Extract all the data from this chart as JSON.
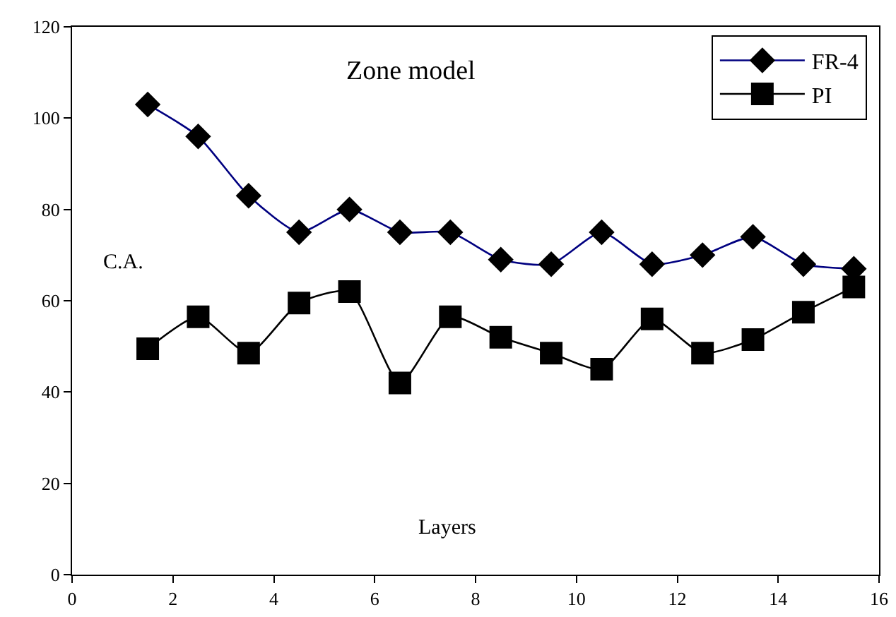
{
  "chart_data": {
    "type": "line",
    "title": "Zone model",
    "xlabel": "Layers",
    "ylabel": "C.A.",
    "x": [
      1.5,
      2.5,
      3.5,
      4.5,
      5.5,
      6.5,
      7.5,
      8.5,
      9.5,
      10.5,
      11.5,
      12.5,
      13.5,
      14.5,
      15.5
    ],
    "series": [
      {
        "name": "FR-4",
        "color": "#000080",
        "marker": "diamond",
        "values": [
          103,
          96,
          83,
          75,
          80,
          75,
          75,
          69,
          68,
          75,
          68,
          70,
          74,
          68,
          67
        ]
      },
      {
        "name": "PI",
        "color": "#000000",
        "marker": "square",
        "values": [
          49.5,
          56.5,
          48.5,
          59.5,
          62,
          42,
          56.5,
          52,
          48.5,
          45,
          56,
          48.5,
          51.5,
          57.5,
          63
        ]
      }
    ],
    "xlim": [
      0,
      16
    ],
    "xticks": [
      0,
      2,
      4,
      6,
      8,
      10,
      12,
      14,
      16
    ],
    "ylim": [
      0,
      120
    ],
    "yticks": [
      0,
      20,
      40,
      60,
      80,
      100,
      120
    ],
    "grid": false,
    "legend": "top right",
    "line_style": "solid"
  }
}
